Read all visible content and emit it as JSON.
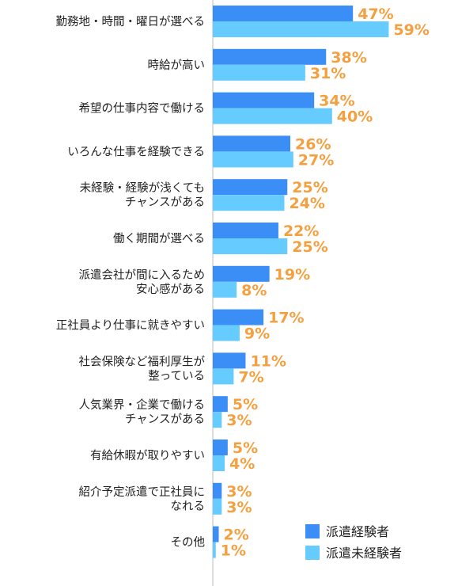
{
  "chart_data": {
    "type": "bar",
    "orientation": "horizontal",
    "title": "",
    "xlabel": "",
    "ylabel": "",
    "xlim": [
      0,
      60
    ],
    "grid": false,
    "legend_position": "bottom-right",
    "value_suffix": "%",
    "colors": {
      "series_1": "#3a8ef5",
      "series_2": "#66ccff",
      "value_labels": "#f5a040",
      "axis": "#bbbbbb"
    },
    "categories": [
      [
        "勤務地・時間・曜日が選べる"
      ],
      [
        "時給が高い"
      ],
      [
        "希望の仕事内容で働ける"
      ],
      [
        "いろんな仕事を経験できる"
      ],
      [
        "未経験・経験が浅くても",
        "チャンスがある"
      ],
      [
        "働く期間が選べる"
      ],
      [
        "派遣会社が間に入るため",
        "安心感がある"
      ],
      [
        "正社員より仕事に就きやすい"
      ],
      [
        "社会保険など福利厚生が",
        "整っている"
      ],
      [
        "人気業界・企業で働ける",
        "チャンスがある"
      ],
      [
        "有給休暇が取りやすい"
      ],
      [
        "紹介予定派遣で正社員に",
        "なれる"
      ],
      [
        "その他"
      ]
    ],
    "series": [
      {
        "name": "派遣経験者",
        "values": [
          47,
          38,
          34,
          26,
          25,
          22,
          19,
          17,
          11,
          5,
          5,
          3,
          2
        ]
      },
      {
        "name": "派遣未経験者",
        "values": [
          59,
          31,
          40,
          27,
          24,
          25,
          8,
          9,
          7,
          3,
          4,
          3,
          1
        ]
      }
    ]
  }
}
